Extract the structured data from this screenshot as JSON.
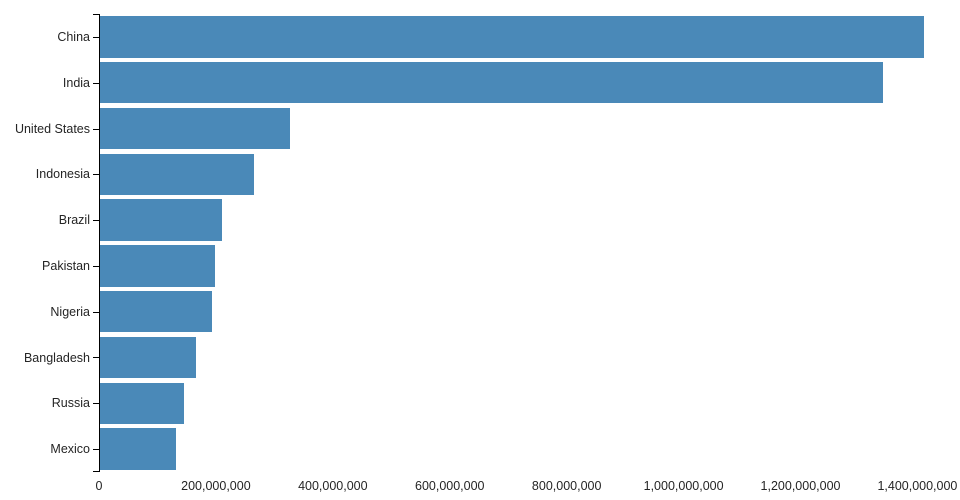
{
  "chart_data": {
    "type": "bar",
    "orientation": "horizontal",
    "title": "",
    "xlabel": "",
    "ylabel": "",
    "categories": [
      "China",
      "India",
      "United States",
      "Indonesia",
      "Brazil",
      "Pakistan",
      "Nigeria",
      "Bangladesh",
      "Russia",
      "Mexico"
    ],
    "values": [
      1409517397,
      1339180127,
      324459463,
      263991379,
      209288278,
      197015955,
      190886311,
      164669751,
      143989754,
      129163276
    ],
    "xlim": [
      0,
      1409517397
    ],
    "x_ticks": [
      0,
      200000000,
      400000000,
      600000000,
      800000000,
      1000000000,
      1200000000,
      1400000000
    ],
    "x_tick_labels": [
      "0",
      "200,000,000",
      "400,000,000",
      "600,000,000",
      "800,000,000",
      "1,000,000,000",
      "1,200,000,000",
      "1,400,000,000"
    ],
    "grid": false,
    "legend": false,
    "bar_color": "#4a89b8",
    "axis_color": "#000000",
    "text_color": "#252525"
  }
}
